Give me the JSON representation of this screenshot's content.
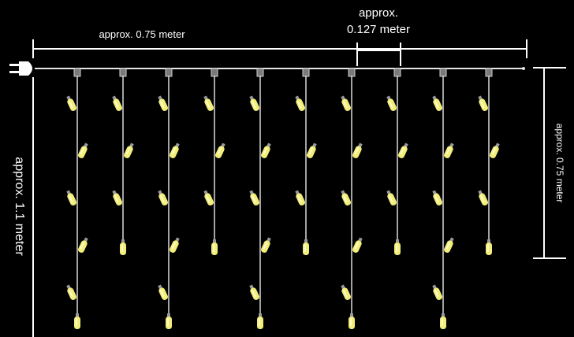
{
  "labels": {
    "top_width": "approx. 0.75 meter",
    "spacing_line1": "approx.",
    "spacing_line2": "0.127 meter",
    "drop_right": "approx. 0.75 meter",
    "height_left": "approx. 1.1 meter"
  },
  "colors": {
    "background": "#000000",
    "line": "#ffffff",
    "wire": "#d9d9d9",
    "bulb": "#f2ee7a",
    "bulb_highlight": "#fffbc8",
    "cap": "#7a7a7a"
  },
  "icons": {
    "plug": "power-plug-icon",
    "bulb": "led-bulb-icon"
  },
  "strands": {
    "count": 10,
    "bulbs_per_strand": [
      6,
      4,
      6,
      4,
      6,
      4,
      6,
      4,
      6,
      4
    ]
  }
}
